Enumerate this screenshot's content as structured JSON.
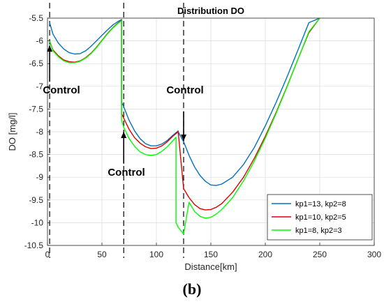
{
  "caption": "(b)",
  "chart_data": {
    "type": "line",
    "title": "Distribution DO",
    "xlabel": "Distance[km]",
    "ylabel": "DO [mg/l]",
    "xlim": [
      0,
      300
    ],
    "ylim": [
      -10.5,
      -5.5
    ],
    "xticks": [
      "0",
      "50",
      "100",
      "150",
      "200",
      "250",
      "300"
    ],
    "yticks": [
      "-5.5",
      "-6",
      "-6.5",
      "-7",
      "-7.5",
      "-8",
      "-8.5",
      "-9",
      "-9.5",
      "-10",
      "-10.5"
    ],
    "grid": true,
    "legend_position": "bottom-right",
    "vlines": [
      2,
      70,
      125
    ],
    "annotations": [
      {
        "text": "Control",
        "arrow_x": 2,
        "arrow_tip_y": -6.1,
        "arrow_tail_y": -6.9
      },
      {
        "text": "Control",
        "arrow_x": 70,
        "arrow_tip_y": -8.0,
        "arrow_tail_y": -8.7
      },
      {
        "text": "Control",
        "arrow_x": 125,
        "arrow_tip_y": -8.2,
        "arrow_tail_y": -7.55
      }
    ],
    "series": [
      {
        "name": "kp1=13, kp2=8",
        "color": "#0072BD",
        "x": [
          2,
          5,
          10,
          15,
          20,
          25,
          30,
          35,
          40,
          45,
          50,
          55,
          60,
          65,
          68,
          68,
          70,
          75,
          80,
          85,
          90,
          95,
          100,
          105,
          110,
          115,
          118,
          120,
          120,
          125,
          130,
          135,
          140,
          145,
          150,
          155,
          160,
          170,
          180,
          190,
          200,
          210,
          220,
          230,
          240,
          250
        ],
        "y": [
          -5.6,
          -5.85,
          -6.05,
          -6.18,
          -6.26,
          -6.29,
          -6.28,
          -6.22,
          -6.12,
          -6.0,
          -5.88,
          -5.76,
          -5.65,
          -5.57,
          -5.53,
          -7.35,
          -7.45,
          -7.75,
          -7.98,
          -8.15,
          -8.26,
          -8.31,
          -8.31,
          -8.27,
          -8.19,
          -8.08,
          -8.02,
          -7.98,
          -8.0,
          -8.22,
          -8.52,
          -8.77,
          -8.96,
          -9.09,
          -9.17,
          -9.18,
          -9.15,
          -9.0,
          -8.72,
          -8.34,
          -7.87,
          -7.35,
          -6.79,
          -6.2,
          -5.6,
          -5.5
        ]
      },
      {
        "name": "kp1=10, kp2=5",
        "color": "#E00000",
        "x": [
          2,
          5,
          10,
          15,
          20,
          25,
          30,
          35,
          40,
          45,
          50,
          55,
          60,
          65,
          68,
          68,
          70,
          75,
          80,
          85,
          90,
          95,
          100,
          105,
          110,
          115,
          118,
          120,
          120,
          125,
          130,
          135,
          140,
          145,
          150,
          155,
          160,
          170,
          180,
          190,
          200,
          210,
          220,
          230,
          240,
          250
        ],
        "y": [
          -6.0,
          -6.2,
          -6.33,
          -6.42,
          -6.46,
          -6.47,
          -6.44,
          -6.37,
          -6.27,
          -6.14,
          -5.99,
          -5.84,
          -5.71,
          -5.6,
          -5.55,
          -7.6,
          -7.7,
          -7.95,
          -8.13,
          -8.25,
          -8.33,
          -8.37,
          -8.36,
          -8.31,
          -8.22,
          -8.1,
          -8.04,
          -8.0,
          -8.0,
          -9.25,
          -9.45,
          -9.6,
          -9.69,
          -9.72,
          -9.71,
          -9.66,
          -9.58,
          -9.33,
          -9.0,
          -8.58,
          -8.1,
          -7.57,
          -7.0,
          -6.4,
          -5.82,
          -5.5
        ]
      },
      {
        "name": "kp1=8,  kp2=3",
        "color": "#00FF00",
        "x": [
          2,
          5,
          10,
          15,
          20,
          25,
          30,
          35,
          40,
          45,
          50,
          55,
          60,
          65,
          68,
          68,
          70,
          75,
          80,
          85,
          90,
          95,
          100,
          105,
          110,
          115,
          118,
          118,
          120,
          125,
          130,
          135,
          140,
          145,
          150,
          155,
          160,
          170,
          180,
          190,
          200,
          210,
          220,
          230,
          240,
          250
        ],
        "y": [
          -6.0,
          -6.22,
          -6.35,
          -6.44,
          -6.48,
          -6.48,
          -6.45,
          -6.38,
          -6.28,
          -6.15,
          -6.0,
          -5.85,
          -5.72,
          -5.61,
          -5.56,
          -7.75,
          -7.9,
          -8.15,
          -8.32,
          -8.44,
          -8.5,
          -8.52,
          -8.5,
          -8.43,
          -8.33,
          -8.2,
          -8.12,
          -10.0,
          -10.1,
          -10.25,
          -9.55,
          -9.75,
          -9.86,
          -9.9,
          -9.88,
          -9.81,
          -9.71,
          -9.45,
          -9.08,
          -8.64,
          -8.14,
          -7.59,
          -7.01,
          -6.4,
          -5.8,
          -5.5
        ]
      }
    ]
  }
}
